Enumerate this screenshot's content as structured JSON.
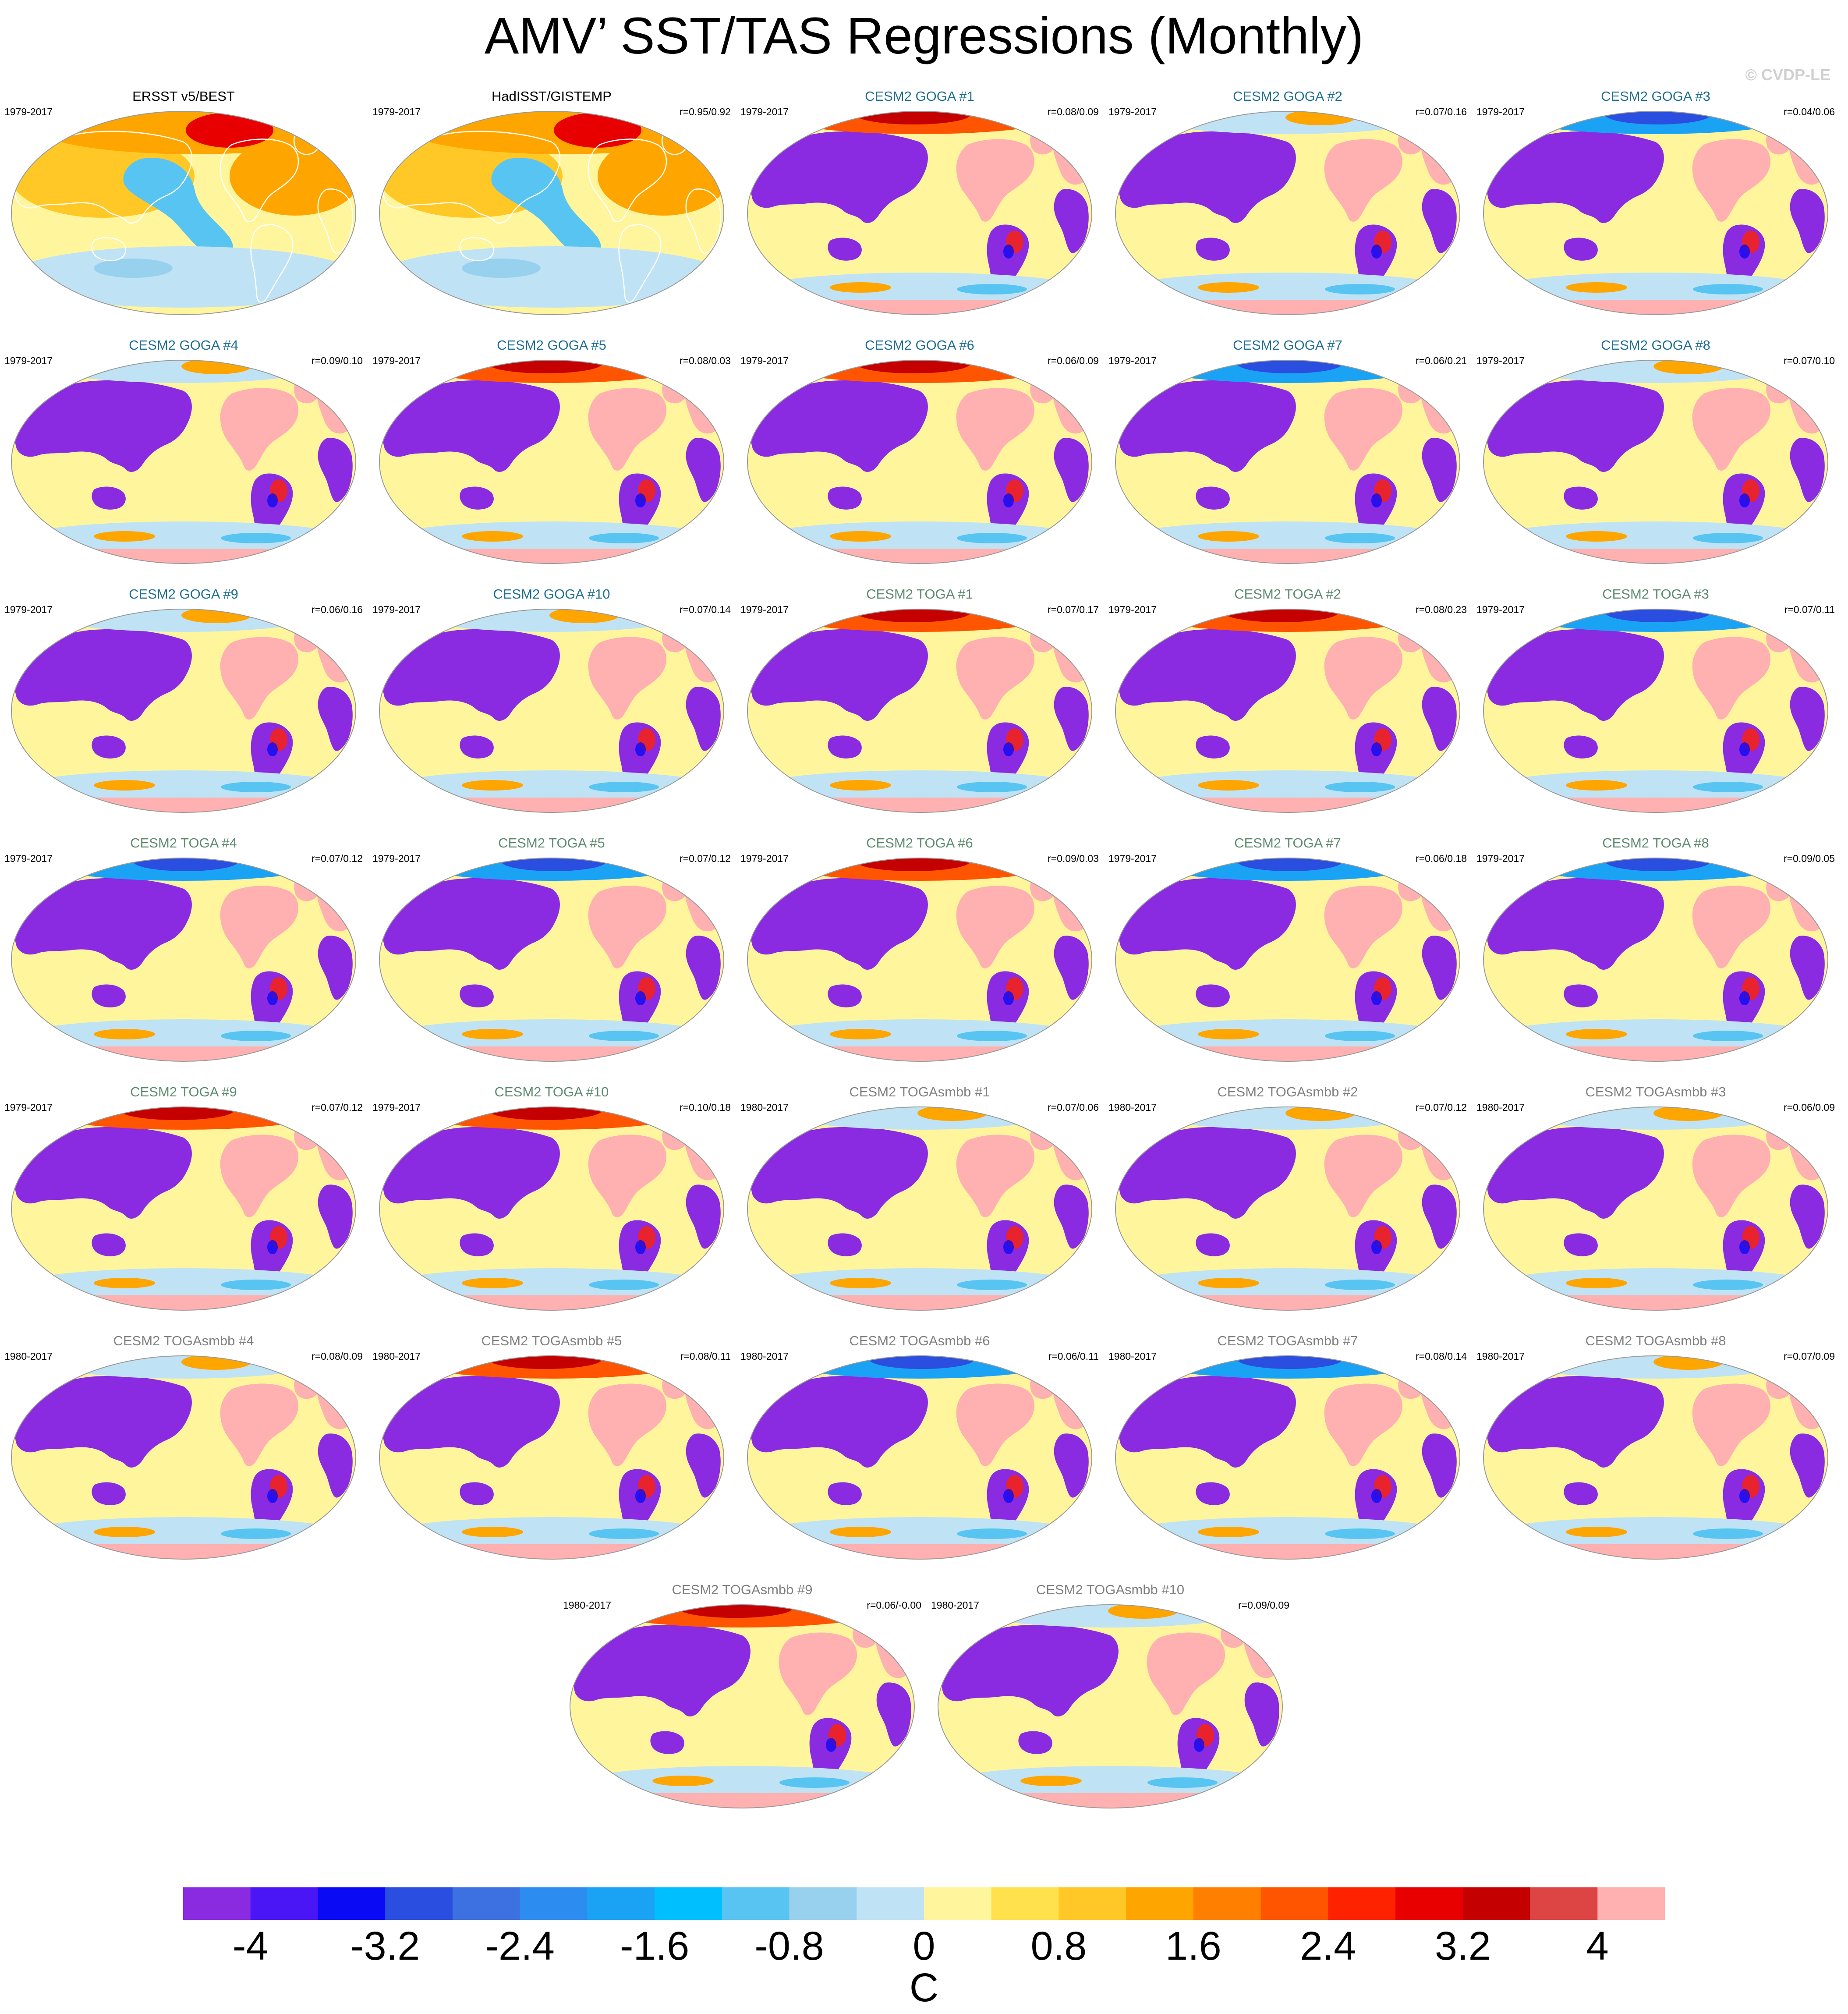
{
  "figure": {
    "title": "AMV’ SST/TAS Regressions (Monthly)",
    "watermark": "© CVDP-LE"
  },
  "panels": [
    {
      "title": "ERSST v5/BEST",
      "period": "1979-2017",
      "corr": "",
      "kind": "obs",
      "title_color": "#000000"
    },
    {
      "title": "HadISST/GISTEMP",
      "period": "1979-2017",
      "corr": "r=0.95/0.92",
      "kind": "obs",
      "title_color": "#000000"
    },
    {
      "title": "CESM2 GOGA #1",
      "period": "1979-2017",
      "corr": "r=0.08/0.09",
      "kind": "model",
      "title_color": "#1f6f93",
      "arctic": "warm"
    },
    {
      "title": "CESM2 GOGA #2",
      "period": "1979-2017",
      "corr": "r=0.07/0.16",
      "kind": "model",
      "title_color": "#1f6f93",
      "arctic": "mixed"
    },
    {
      "title": "CESM2 GOGA #3",
      "period": "1979-2017",
      "corr": "r=0.04/0.06",
      "kind": "model",
      "title_color": "#1f6f93",
      "arctic": "cold"
    },
    {
      "title": "CESM2 GOGA #4",
      "period": "1979-2017",
      "corr": "r=0.09/0.10",
      "kind": "model",
      "title_color": "#1f6f93",
      "arctic": "mixed"
    },
    {
      "title": "CESM2 GOGA #5",
      "period": "1979-2017",
      "corr": "r=0.08/0.03",
      "kind": "model",
      "title_color": "#1f6f93",
      "arctic": "warm"
    },
    {
      "title": "CESM2 GOGA #6",
      "period": "1979-2017",
      "corr": "r=0.06/0.09",
      "kind": "model",
      "title_color": "#1f6f93",
      "arctic": "warm"
    },
    {
      "title": "CESM2 GOGA #7",
      "period": "1979-2017",
      "corr": "r=0.06/0.21",
      "kind": "model",
      "title_color": "#1f6f93",
      "arctic": "cold"
    },
    {
      "title": "CESM2 GOGA #8",
      "period": "1979-2017",
      "corr": "r=0.07/0.10",
      "kind": "model",
      "title_color": "#1f6f93",
      "arctic": "mixed"
    },
    {
      "title": "CESM2 GOGA #9",
      "period": "1979-2017",
      "corr": "r=0.06/0.16",
      "kind": "model",
      "title_color": "#1f6f93",
      "arctic": "mixed"
    },
    {
      "title": "CESM2 GOGA #10",
      "period": "1979-2017",
      "corr": "r=0.07/0.14",
      "kind": "model",
      "title_color": "#1f6f93",
      "arctic": "mixed"
    },
    {
      "title": "CESM2 TOGA #1",
      "period": "1979-2017",
      "corr": "r=0.07/0.17",
      "kind": "model",
      "title_color": "#5c8a6e",
      "arctic": "warm"
    },
    {
      "title": "CESM2 TOGA #2",
      "period": "1979-2017",
      "corr": "r=0.08/0.23",
      "kind": "model",
      "title_color": "#5c8a6e",
      "arctic": "warm"
    },
    {
      "title": "CESM2 TOGA #3",
      "period": "1979-2017",
      "corr": "r=0.07/0.11",
      "kind": "model",
      "title_color": "#5c8a6e",
      "arctic": "cold"
    },
    {
      "title": "CESM2 TOGA #4",
      "period": "1979-2017",
      "corr": "r=0.07/0.12",
      "kind": "model",
      "title_color": "#5c8a6e",
      "arctic": "cold"
    },
    {
      "title": "CESM2 TOGA #5",
      "period": "1979-2017",
      "corr": "r=0.07/0.12",
      "kind": "model",
      "title_color": "#5c8a6e",
      "arctic": "cold"
    },
    {
      "title": "CESM2 TOGA #6",
      "period": "1979-2017",
      "corr": "r=0.09/0.03",
      "kind": "model",
      "title_color": "#5c8a6e",
      "arctic": "warm"
    },
    {
      "title": "CESM2 TOGA #7",
      "period": "1979-2017",
      "corr": "r=0.06/0.18",
      "kind": "model",
      "title_color": "#5c8a6e",
      "arctic": "cold"
    },
    {
      "title": "CESM2 TOGA #8",
      "period": "1979-2017",
      "corr": "r=0.09/0.05",
      "kind": "model",
      "title_color": "#5c8a6e",
      "arctic": "cold"
    },
    {
      "title": "CESM2 TOGA #9",
      "period": "1979-2017",
      "corr": "r=0.07/0.12",
      "kind": "model",
      "title_color": "#5c8a6e",
      "arctic": "warm"
    },
    {
      "title": "CESM2 TOGA #10",
      "period": "1979-2017",
      "corr": "r=0.10/0.18",
      "kind": "model",
      "title_color": "#5c8a6e",
      "arctic": "warm"
    },
    {
      "title": "CESM2 TOGAsmbb #1",
      "period": "1980-2017",
      "corr": "r=0.07/0.06",
      "kind": "model",
      "title_color": "#808080",
      "arctic": "mixed"
    },
    {
      "title": "CESM2 TOGAsmbb #2",
      "period": "1980-2017",
      "corr": "r=0.07/0.12",
      "kind": "model",
      "title_color": "#808080",
      "arctic": "mixed"
    },
    {
      "title": "CESM2 TOGAsmbb #3",
      "period": "1980-2017",
      "corr": "r=0.06/0.09",
      "kind": "model",
      "title_color": "#808080",
      "arctic": "mixed"
    },
    {
      "title": "CESM2 TOGAsmbb #4",
      "period": "1980-2017",
      "corr": "r=0.08/0.09",
      "kind": "model",
      "title_color": "#808080",
      "arctic": "mixed"
    },
    {
      "title": "CESM2 TOGAsmbb #5",
      "period": "1980-2017",
      "corr": "r=0.08/0.11",
      "kind": "model",
      "title_color": "#808080",
      "arctic": "warm"
    },
    {
      "title": "CESM2 TOGAsmbb #6",
      "period": "1980-2017",
      "corr": "r=0.06/0.11",
      "kind": "model",
      "title_color": "#808080",
      "arctic": "cold"
    },
    {
      "title": "CESM2 TOGAsmbb #7",
      "period": "1980-2017",
      "corr": "r=0.08/0.14",
      "kind": "model",
      "title_color": "#808080",
      "arctic": "cold"
    },
    {
      "title": "CESM2 TOGAsmbb #8",
      "period": "1980-2017",
      "corr": "r=0.07/0.09",
      "kind": "model",
      "title_color": "#808080",
      "arctic": "mixed"
    },
    {
      "title": "CESM2 TOGAsmbb #9",
      "period": "1980-2017",
      "corr": "r=0.06/-0.00",
      "kind": "model",
      "title_color": "#808080",
      "arctic": "warm"
    },
    {
      "title": "CESM2 TOGAsmbb #10",
      "period": "1980-2017",
      "corr": "r=0.09/0.09",
      "kind": "model",
      "title_color": "#808080",
      "arctic": "mixed"
    }
  ],
  "colorbar": {
    "colors": [
      "#8a2be2",
      "#4b16f5",
      "#0a0af5",
      "#2a4ee0",
      "#3d70e0",
      "#2c8cf0",
      "#1aa3f5",
      "#00bfff",
      "#58c4f2",
      "#98d1ee",
      "#bfe3f5",
      "#fff59d",
      "#ffe14d",
      "#ffc826",
      "#ffa500",
      "#ff8000",
      "#ff5500",
      "#ff2200",
      "#e80000",
      "#c40000",
      "#dd4444",
      "#ffb0b0"
    ],
    "tick_labels": [
      "-4",
      "-3.2",
      "-2.4",
      "-1.6",
      "-0.8",
      "0",
      "0.8",
      "1.6",
      "2.4",
      "3.2",
      "4"
    ],
    "units": "C"
  }
}
